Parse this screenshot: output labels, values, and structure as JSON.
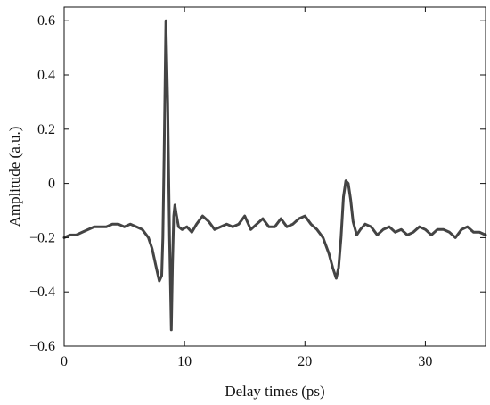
{
  "chart_data": {
    "type": "line",
    "title": "",
    "xlabel": "Delay times (ps)",
    "ylabel": "Amplitude (a.u.)",
    "xlim": [
      0,
      35
    ],
    "ylim": [
      -0.6,
      0.65
    ],
    "xticks": [
      0,
      10,
      20,
      30
    ],
    "yticks": [
      -0.6,
      -0.4,
      -0.2,
      0,
      0.2,
      0.4,
      0.6
    ],
    "xtick_labels": [
      "0",
      "10",
      "20",
      "30"
    ],
    "ytick_labels": [
      "−0.6",
      "−0.4",
      "−0.2",
      "0",
      "0.2",
      "0.4",
      "0.6"
    ],
    "grid": false,
    "line_color": "#444444",
    "series": [
      {
        "x": [
          0,
          0.5,
          1.0,
          1.5,
          2.0,
          2.5,
          3.0,
          3.5,
          4.0,
          4.5,
          5.0,
          5.5,
          6.0,
          6.5,
          7.0,
          7.3,
          7.6,
          7.9,
          8.1,
          8.2,
          8.3,
          8.45,
          8.6,
          8.75,
          8.9,
          9.0,
          9.1,
          9.2,
          9.3,
          9.5,
          9.8,
          10.2,
          10.6,
          11.0,
          11.5,
          12.0,
          12.5,
          13.0,
          13.5,
          14.0,
          14.5,
          15.0,
          15.5,
          16.0,
          16.5,
          17.0,
          17.5,
          18.0,
          18.5,
          19.0,
          19.5,
          20.0,
          20.5,
          21.0,
          21.5,
          22.0,
          22.3,
          22.6,
          22.8,
          23.0,
          23.2,
          23.4,
          23.6,
          23.8,
          24.0,
          24.3,
          24.6,
          25.0,
          25.5,
          26.0,
          26.5,
          27.0,
          27.5,
          28.0,
          28.5,
          29.0,
          29.5,
          30.0,
          30.5,
          31.0,
          31.5,
          32.0,
          32.5,
          33.0,
          33.5,
          34.0,
          34.5,
          35.0
        ],
        "y": [
          -0.2,
          -0.19,
          -0.19,
          -0.18,
          -0.17,
          -0.16,
          -0.16,
          -0.16,
          -0.15,
          -0.15,
          -0.16,
          -0.15,
          -0.16,
          -0.17,
          -0.2,
          -0.24,
          -0.3,
          -0.36,
          -0.34,
          -0.2,
          0.1,
          0.6,
          0.3,
          -0.2,
          -0.54,
          -0.3,
          -0.12,
          -0.08,
          -0.11,
          -0.16,
          -0.17,
          -0.16,
          -0.18,
          -0.15,
          -0.12,
          -0.14,
          -0.17,
          -0.16,
          -0.15,
          -0.16,
          -0.15,
          -0.12,
          -0.17,
          -0.15,
          -0.13,
          -0.16,
          -0.16,
          -0.13,
          -0.16,
          -0.15,
          -0.13,
          -0.12,
          -0.15,
          -0.17,
          -0.2,
          -0.26,
          -0.31,
          -0.35,
          -0.31,
          -0.2,
          -0.05,
          0.01,
          0.0,
          -0.06,
          -0.14,
          -0.19,
          -0.17,
          -0.15,
          -0.16,
          -0.19,
          -0.17,
          -0.16,
          -0.18,
          -0.17,
          -0.19,
          -0.18,
          -0.16,
          -0.17,
          -0.19,
          -0.17,
          -0.17,
          -0.18,
          -0.2,
          -0.17,
          -0.16,
          -0.18,
          -0.18,
          -0.19
        ]
      }
    ]
  }
}
